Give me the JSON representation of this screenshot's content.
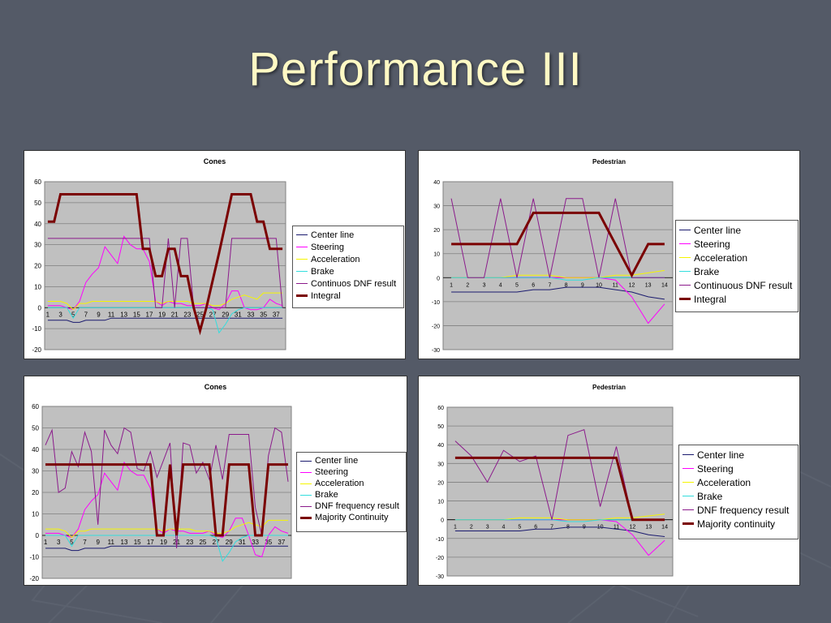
{
  "slide": {
    "title": "Performance III"
  },
  "chart_data": [
    {
      "type": "line",
      "title": "Cones",
      "ylim": [
        -20,
        60
      ],
      "yticks": [
        -20,
        -10,
        0,
        10,
        20,
        30,
        40,
        50,
        60
      ],
      "x": [
        1,
        2,
        3,
        4,
        5,
        6,
        7,
        8,
        9,
        10,
        11,
        12,
        13,
        14,
        15,
        16,
        17,
        18,
        19,
        20,
        21,
        22,
        23,
        24,
        25,
        26,
        27,
        28,
        29,
        30,
        31,
        32,
        33,
        34,
        35,
        36,
        37,
        38
      ],
      "xtick_labels": [
        "1",
        "3",
        "5",
        "7",
        "9",
        "11",
        "13",
        "15",
        "17",
        "19",
        "21",
        "23",
        "25",
        "27",
        "29",
        "31",
        "33",
        "35",
        "37"
      ],
      "grid": true,
      "legend": "right",
      "series": [
        {
          "name": "Center line",
          "color": "#1a1a6e",
          "values": [
            -6,
            -6,
            -6,
            -6,
            -7,
            -7,
            -6,
            -6,
            -6,
            -6,
            -5,
            -5,
            -5,
            -5,
            -5,
            -5,
            -5,
            -5,
            -5,
            -5,
            -5,
            -5,
            -5,
            -5,
            -5,
            -5,
            -5,
            -5,
            -5,
            -5,
            -5,
            -5,
            -5,
            -5,
            -5,
            -5,
            -5,
            -5
          ]
        },
        {
          "name": "Steering",
          "color": "#ff00ff",
          "values": [
            1,
            1,
            1,
            0,
            -1,
            3,
            12,
            16,
            19,
            29,
            25,
            21,
            34,
            30,
            28,
            28,
            22,
            3,
            1,
            3,
            2,
            2,
            1,
            1,
            1,
            2,
            0,
            -1,
            2,
            8,
            8,
            0,
            -1,
            -1,
            0,
            4,
            2,
            1
          ]
        },
        {
          "name": "Acceleration",
          "color": "#f5f500",
          "values": [
            3,
            3,
            3,
            2,
            -1,
            2,
            2,
            3,
            3,
            3,
            3,
            3,
            3,
            3,
            3,
            3,
            3,
            3,
            2,
            3,
            3,
            3,
            3,
            2,
            2,
            2,
            1,
            1,
            2,
            4,
            5,
            6,
            5,
            4,
            7,
            7,
            7,
            7
          ]
        },
        {
          "name": "Brake",
          "color": "#33dddd",
          "values": [
            0,
            0,
            0,
            0,
            -5,
            0,
            0,
            0,
            0,
            0,
            0,
            0,
            0,
            0,
            0,
            0,
            0,
            0,
            0,
            0,
            0,
            0,
            0,
            0,
            0,
            0,
            -1,
            -12,
            -8,
            -3,
            -1,
            0,
            0,
            0,
            0,
            0,
            0,
            0
          ]
        },
        {
          "name": "Continuos DNF result",
          "color": "#8b1a8b",
          "values": [
            33,
            33,
            33,
            33,
            33,
            33,
            33,
            33,
            33,
            33,
            33,
            33,
            33,
            33,
            33,
            33,
            33,
            0,
            0,
            33,
            0,
            33,
            33,
            0,
            0,
            0,
            0,
            0,
            0,
            33,
            33,
            33,
            33,
            33,
            33,
            33,
            33,
            0
          ]
        },
        {
          "name": "Integral",
          "color": "#7a0000",
          "values": [
            41,
            41,
            54,
            54,
            54,
            54,
            54,
            54,
            54,
            54,
            54,
            54,
            54,
            54,
            54,
            28,
            28,
            15,
            15,
            28,
            28,
            15,
            15,
            0,
            -11,
            0,
            13,
            26,
            40,
            54,
            54,
            54,
            54,
            41,
            41,
            28,
            28,
            28
          ]
        }
      ]
    },
    {
      "type": "line",
      "title": "Pedestrian",
      "ylim": [
        -30,
        40
      ],
      "yticks": [
        -30,
        -20,
        -10,
        0,
        10,
        20,
        30,
        40
      ],
      "x": [
        1,
        2,
        3,
        4,
        5,
        6,
        7,
        8,
        9,
        10,
        11,
        12,
        13,
        14
      ],
      "xtick_labels": [
        "1",
        "2",
        "3",
        "4",
        "5",
        "6",
        "7",
        "8",
        "9",
        "10",
        "11",
        "12",
        "13",
        "14"
      ],
      "grid": true,
      "legend": "right",
      "series": [
        {
          "name": "Center line",
          "color": "#1a1a6e",
          "values": [
            -6,
            -6,
            -6,
            -6,
            -6,
            -5,
            -5,
            -4,
            -4,
            -4,
            -5,
            -6,
            -8,
            -9
          ]
        },
        {
          "name": "Steering",
          "color": "#ff00ff",
          "values": [
            0,
            0,
            0,
            0,
            0,
            0,
            0,
            0,
            0,
            0,
            -1,
            -8,
            -19,
            -11
          ]
        },
        {
          "name": "Acceleration",
          "color": "#f5f500",
          "values": [
            0,
            0,
            0,
            0,
            1,
            1,
            1,
            0,
            0,
            0,
            1,
            1,
            2,
            3
          ]
        },
        {
          "name": "Brake",
          "color": "#33dddd",
          "values": [
            0,
            0,
            0,
            0,
            0,
            0,
            0,
            -1,
            -1,
            0,
            0,
            0,
            0,
            0
          ]
        },
        {
          "name": "Continuous DNF result",
          "color": "#8b1a8b",
          "values": [
            33,
            0,
            0,
            33,
            0,
            33,
            0,
            33,
            33,
            0,
            33,
            0,
            0,
            0
          ]
        },
        {
          "name": "Integral",
          "color": "#7a0000",
          "values": [
            14,
            14,
            14,
            14,
            14,
            27,
            27,
            27,
            27,
            27,
            14,
            1,
            14,
            14
          ]
        }
      ]
    },
    {
      "type": "line",
      "title": "Cones",
      "ylim": [
        -20,
        60
      ],
      "yticks": [
        -20,
        -10,
        0,
        10,
        20,
        30,
        40,
        50,
        60
      ],
      "x": [
        1,
        2,
        3,
        4,
        5,
        6,
        7,
        8,
        9,
        10,
        11,
        12,
        13,
        14,
        15,
        16,
        17,
        18,
        19,
        20,
        21,
        22,
        23,
        24,
        25,
        26,
        27,
        28,
        29,
        30,
        31,
        32,
        33,
        34,
        35,
        36,
        37,
        38
      ],
      "xtick_labels": [
        "1",
        "3",
        "5",
        "7",
        "9",
        "11",
        "13",
        "15",
        "17",
        "19",
        "21",
        "23",
        "25",
        "27",
        "29",
        "31",
        "33",
        "35",
        "37"
      ],
      "grid": true,
      "legend": "right",
      "series": [
        {
          "name": "Center line",
          "color": "#1a1a6e",
          "values": [
            -6,
            -6,
            -6,
            -6,
            -7,
            -7,
            -6,
            -6,
            -6,
            -6,
            -5,
            -5,
            -5,
            -5,
            -5,
            -5,
            -5,
            -5,
            -5,
            -5,
            -5,
            -5,
            -5,
            -5,
            -5,
            -5,
            -5,
            -5,
            -5,
            -5,
            -5,
            -5,
            -5,
            -5,
            -5,
            -5,
            -5,
            -5
          ]
        },
        {
          "name": "Steering",
          "color": "#ff00ff",
          "values": [
            1,
            1,
            1,
            0,
            -1,
            3,
            12,
            16,
            19,
            29,
            25,
            21,
            34,
            30,
            28,
            28,
            22,
            3,
            1,
            3,
            2,
            2,
            1,
            1,
            1,
            2,
            0,
            -1,
            2,
            8,
            8,
            0,
            -9,
            -10,
            0,
            4,
            2,
            1
          ]
        },
        {
          "name": "Acceleration",
          "color": "#f5f500",
          "values": [
            3,
            3,
            3,
            2,
            -1,
            2,
            2,
            3,
            3,
            3,
            3,
            3,
            3,
            3,
            3,
            3,
            3,
            3,
            2,
            3,
            3,
            3,
            3,
            2,
            2,
            2,
            1,
            1,
            2,
            4,
            5,
            6,
            5,
            4,
            7,
            7,
            7,
            7
          ]
        },
        {
          "name": "Brake",
          "color": "#33dddd",
          "values": [
            0,
            0,
            0,
            0,
            -5,
            0,
            0,
            0,
            0,
            0,
            0,
            0,
            0,
            0,
            0,
            0,
            0,
            0,
            0,
            0,
            0,
            0,
            0,
            0,
            0,
            0,
            -1,
            -12,
            -8,
            -3,
            -1,
            0,
            0,
            0,
            0,
            0,
            0,
            0
          ]
        },
        {
          "name": "DNF frequency result",
          "color": "#8b1a8b",
          "values": [
            42,
            49,
            20,
            22,
            39,
            32,
            48,
            39,
            5,
            49,
            42,
            38,
            50,
            48,
            31,
            30,
            39,
            27,
            35,
            43,
            -6,
            43,
            42,
            29,
            34,
            26,
            42,
            26,
            47,
            47,
            47,
            47,
            13,
            0,
            37,
            50,
            48,
            25
          ]
        },
        {
          "name": "Majority Continuity",
          "color": "#7a0000",
          "values": [
            33,
            33,
            33,
            33,
            33,
            33,
            33,
            33,
            33,
            33,
            33,
            33,
            33,
            33,
            33,
            33,
            33,
            0,
            0,
            33,
            0,
            33,
            33,
            33,
            33,
            33,
            0,
            0,
            33,
            33,
            33,
            33,
            0,
            0,
            33,
            33,
            33,
            33
          ]
        }
      ]
    },
    {
      "type": "line",
      "title": "Pedestrian",
      "ylim": [
        -30,
        60
      ],
      "yticks": [
        -30,
        -20,
        -10,
        0,
        10,
        20,
        30,
        40,
        50,
        60
      ],
      "x": [
        1,
        2,
        3,
        4,
        5,
        6,
        7,
        8,
        9,
        10,
        11,
        12,
        13,
        14
      ],
      "xtick_labels": [
        "1",
        "2",
        "3",
        "4",
        "5",
        "6",
        "7",
        "8",
        "9",
        "10",
        "11",
        "12",
        "13",
        "14"
      ],
      "grid": true,
      "legend": "right",
      "series": [
        {
          "name": "Center line",
          "color": "#1a1a6e",
          "values": [
            -6,
            -6,
            -6,
            -6,
            -6,
            -5,
            -5,
            -4,
            -4,
            -4,
            -5,
            -6,
            -8,
            -9
          ]
        },
        {
          "name": "Steering",
          "color": "#ff00ff",
          "values": [
            0,
            0,
            0,
            0,
            0,
            0,
            0,
            0,
            0,
            0,
            -1,
            -8,
            -19,
            -11
          ]
        },
        {
          "name": "Acceleration",
          "color": "#f5f500",
          "values": [
            0,
            0,
            0,
            0,
            1,
            1,
            1,
            0,
            0,
            0,
            1,
            1,
            2,
            3
          ]
        },
        {
          "name": "Brake",
          "color": "#33dddd",
          "values": [
            0,
            0,
            0,
            0,
            0,
            0,
            0,
            -1,
            -1,
            0,
            0,
            0,
            0,
            0
          ]
        },
        {
          "name": "DNF frequency result",
          "color": "#8b1a8b",
          "values": [
            42,
            34,
            20,
            37,
            31,
            34,
            0,
            45,
            48,
            7,
            39,
            0,
            0,
            0
          ]
        },
        {
          "name": "Majority continuity",
          "color": "#7a0000",
          "values": [
            33,
            33,
            33,
            33,
            33,
            33,
            33,
            33,
            33,
            33,
            33,
            0,
            0,
            0
          ]
        }
      ]
    }
  ]
}
